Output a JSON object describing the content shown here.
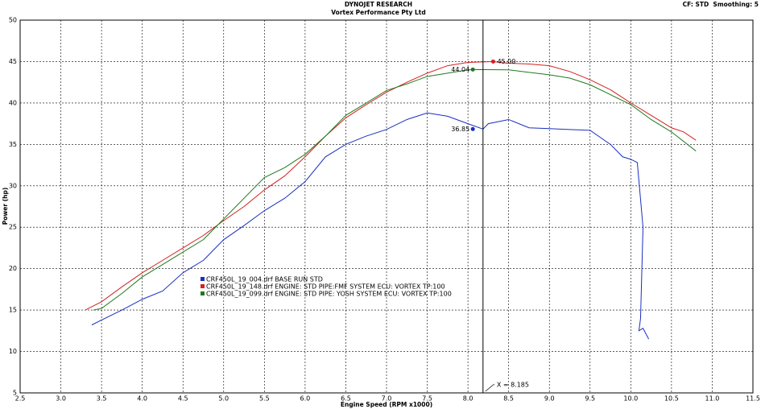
{
  "chart_data": {
    "type": "line",
    "title": "DYNOJET RESEARCH",
    "subtitle": "Vortex Performance Pty Ltd",
    "corner_note": "CF: STD  Smoothing: 5",
    "xlabel": "Engine Speed (RPM x1000)",
    "ylabel": "Power (hp)",
    "xlim": [
      2.5,
      11.5
    ],
    "ylim": [
      5,
      50
    ],
    "xticks": [
      2.5,
      {
        "value": 3,
        "label": "3.0"
      },
      3.5,
      {
        "value": 4,
        "label": "4.0"
      },
      4.5,
      {
        "value": 5,
        "label": "5.0"
      },
      5.5,
      {
        "value": 6,
        "label": "6.0"
      },
      6.5,
      {
        "value": 7,
        "label": "7.0"
      },
      7.5,
      {
        "value": 8,
        "label": "8.0"
      },
      8.5,
      {
        "value": 9,
        "label": "9.0"
      },
      9.5,
      {
        "value": 10,
        "label": "10.0"
      },
      10.5,
      {
        "value": 11,
        "label": "11.0"
      },
      11.5
    ],
    "yticks": [
      5,
      10,
      15,
      20,
      25,
      30,
      35,
      40,
      45,
      50
    ],
    "grid": true,
    "series": [
      {
        "name": "CRF450L_19_004.drf BASE RUN STD",
        "color": "#1a2fc0",
        "x": [
          3.38,
          3.5,
          3.75,
          4.0,
          4.25,
          4.5,
          4.75,
          5.0,
          5.25,
          5.5,
          5.75,
          6.0,
          6.25,
          6.5,
          6.75,
          7.0,
          7.25,
          7.5,
          7.75,
          8.0,
          8.185,
          8.25,
          8.5,
          8.75,
          9.0,
          9.25,
          9.5,
          9.75,
          9.9,
          10.0,
          10.08,
          10.15,
          10.12,
          10.1,
          10.15,
          10.22
        ],
        "values": [
          13.2,
          13.8,
          15.0,
          16.3,
          17.3,
          19.5,
          21.0,
          23.5,
          25.2,
          27.0,
          28.5,
          30.5,
          33.5,
          35.0,
          36.0,
          36.8,
          38.0,
          38.8,
          38.4,
          37.5,
          36.85,
          37.5,
          38.0,
          37.0,
          36.9,
          36.8,
          36.7,
          35.0,
          33.5,
          33.2,
          32.8,
          25.0,
          14.0,
          12.5,
          12.8,
          11.5
        ]
      },
      {
        "name": "CRF450L_19_148.drf ENGINE: STD PIPE:FMF SYSTEM ECU: VORTEX TP:100",
        "color": "#d42020",
        "x": [
          3.3,
          3.5,
          3.75,
          4.0,
          4.25,
          4.5,
          4.75,
          5.0,
          5.25,
          5.5,
          5.75,
          6.0,
          6.25,
          6.5,
          6.75,
          7.0,
          7.25,
          7.5,
          7.75,
          8.0,
          8.3,
          8.5,
          8.75,
          9.0,
          9.25,
          9.5,
          9.75,
          10.0,
          10.25,
          10.5,
          10.65,
          10.8
        ],
        "values": [
          15.0,
          16.0,
          17.8,
          19.5,
          21.0,
          22.5,
          24.0,
          25.8,
          27.5,
          29.5,
          31.2,
          33.5,
          36.0,
          38.2,
          39.8,
          41.3,
          42.5,
          43.6,
          44.5,
          44.9,
          45.0,
          44.8,
          44.7,
          44.5,
          43.8,
          42.8,
          41.6,
          40.0,
          38.5,
          37.0,
          36.5,
          35.5
        ]
      },
      {
        "name": "CRF450L_19_099.drf ENGINE: STD PIPE: YOSH SYSTEM ECU: VORTEX TP:100",
        "color": "#1f7a1f",
        "x": [
          3.4,
          3.5,
          3.75,
          4.0,
          4.25,
          4.5,
          4.75,
          5.0,
          5.25,
          5.5,
          5.75,
          6.0,
          6.25,
          6.5,
          6.75,
          7.0,
          7.25,
          7.5,
          7.75,
          8.0,
          8.1,
          8.5,
          8.75,
          9.0,
          9.25,
          9.5,
          9.75,
          10.0,
          10.25,
          10.5,
          10.8
        ],
        "values": [
          15.0,
          15.2,
          17.0,
          19.0,
          20.5,
          22.0,
          23.5,
          26.0,
          28.5,
          31.0,
          32.2,
          33.8,
          36.0,
          38.5,
          40.0,
          41.5,
          42.3,
          43.2,
          43.6,
          44.0,
          44.04,
          44.0,
          43.7,
          43.4,
          43.0,
          42.2,
          41.0,
          39.8,
          38.0,
          36.5,
          34.2
        ]
      }
    ],
    "markers": [
      {
        "label": "36.85",
        "x": 8.06,
        "y": 36.85,
        "color": "#1a2fc0"
      },
      {
        "label": "45.00",
        "x": 8.31,
        "y": 45.0,
        "color": "#d42020"
      },
      {
        "label": "44.04",
        "x": 8.06,
        "y": 44.04,
        "color": "#1f7a1f"
      }
    ],
    "cursor": {
      "x": 8.185,
      "label": "X = 8.185"
    }
  }
}
